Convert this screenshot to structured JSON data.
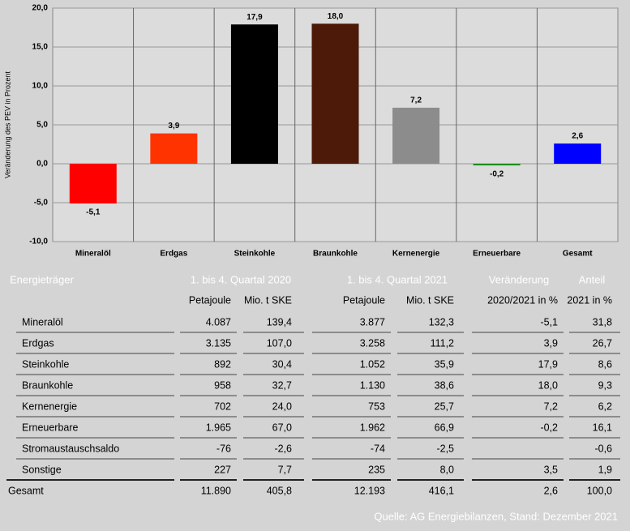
{
  "chart_data": {
    "type": "bar",
    "ylabel": "Veränderung des PEV in Prozent",
    "categories": [
      "Mineralöl",
      "Erdgas",
      "Steinkohle",
      "Braunkohle",
      "Kernenergie",
      "Erneuerbare",
      "Gesamt"
    ],
    "values": [
      -5.1,
      3.9,
      17.9,
      18.0,
      7.2,
      -0.2,
      2.6
    ],
    "value_labels": [
      "-5,1",
      "3,9",
      "17,9",
      "18,0",
      "7,2",
      "-0,2",
      "2,6"
    ],
    "colors": [
      "#ff0000",
      "#ff3300",
      "#000000",
      "#4d1a0a",
      "#8c8c8c",
      "#1e8c1e",
      "#0000ff"
    ],
    "ylim": [
      -10,
      20
    ],
    "yticks": [
      {
        "value": -10,
        "label": "-10,0"
      },
      {
        "value": -5,
        "label": "-5,0"
      },
      {
        "value": 0,
        "label": "0,0"
      },
      {
        "value": 5,
        "label": "5,0"
      },
      {
        "value": 10,
        "label": "10,0"
      },
      {
        "value": 15,
        "label": "15,0"
      },
      {
        "value": 20,
        "label": "20,0"
      }
    ],
    "grid": true
  },
  "table": {
    "header": [
      "Energieträger",
      "1. bis 4. Quartal 2020",
      "1. bis 4. Quartal 2021",
      "Veränderung",
      "Anteil"
    ],
    "subheader": [
      "Petajoule",
      "Mio. t SKE",
      "Petajoule",
      "Mio. t SKE",
      "2020/2021 in %",
      "2021 in %"
    ],
    "rows": [
      [
        "Mineralöl",
        "4.087",
        "139,4",
        "3.877",
        "132,3",
        "-5,1",
        "31,8"
      ],
      [
        "Erdgas",
        "3.135",
        "107,0",
        "3.258",
        "111,2",
        "3,9",
        "26,7"
      ],
      [
        "Steinkohle",
        "892",
        "30,4",
        "1.052",
        "35,9",
        "17,9",
        "8,6"
      ],
      [
        "Braunkohle",
        "958",
        "32,7",
        "1.130",
        "38,6",
        "18,0",
        "9,3"
      ],
      [
        "Kernenergie",
        "702",
        "24,0",
        "753",
        "25,7",
        "7,2",
        "6,2"
      ],
      [
        "Erneuerbare",
        "1.965",
        "67,0",
        "1.962",
        "66,9",
        "-0,2",
        "16,1"
      ],
      [
        "Stromaustauschsaldo",
        "-76",
        "-2,6",
        "-74",
        "-2,5",
        null,
        "-0,6"
      ],
      [
        "Sonstige",
        "227",
        "7,7",
        "235",
        "8,0",
        "3,5",
        "1,9"
      ]
    ],
    "total": [
      "Gesamt",
      "11.890",
      "405,8",
      "12.193",
      "416,1",
      "2,6",
      "100,0"
    ],
    "source": "Quelle: AG Energiebilanzen, Stand: Dezember 2021"
  }
}
